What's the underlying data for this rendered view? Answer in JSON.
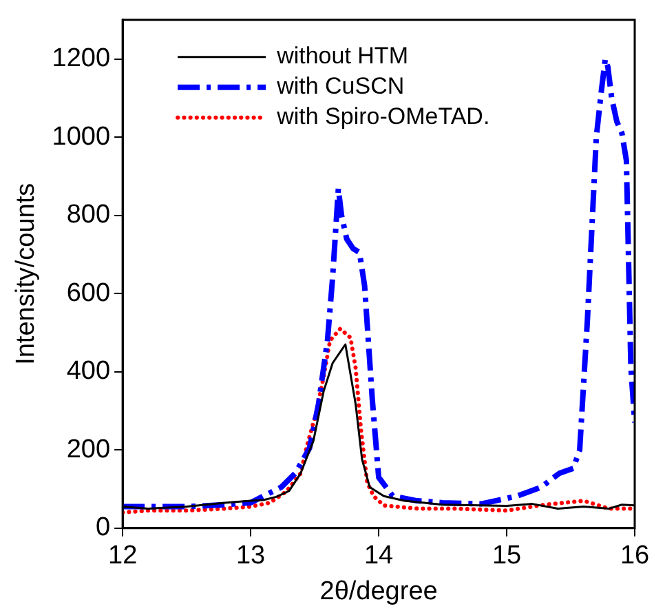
{
  "chart_data": {
    "type": "line",
    "xlabel": "2θ/degree",
    "ylabel": "Intensity/counts",
    "xlim": [
      12,
      16
    ],
    "xticks": [
      12,
      13,
      14,
      15,
      16
    ],
    "ylim": [
      0,
      1300
    ],
    "yticks": [
      0,
      200,
      400,
      600,
      800,
      1000,
      1200
    ],
    "grid": false,
    "legend": "top left",
    "marker": "none",
    "series": [
      {
        "name": "without HTM",
        "color": "#000000",
        "line_style": "solid",
        "x": [
          12.0,
          12.2,
          12.5,
          12.8,
          13.0,
          13.1,
          13.2,
          13.3,
          13.39,
          13.49,
          13.57,
          13.64,
          13.74,
          13.82,
          13.87,
          13.93,
          14.04,
          14.2,
          14.5,
          14.8,
          15.0,
          15.2,
          15.4,
          15.6,
          15.8,
          15.9,
          16.0
        ],
        "values": [
          55,
          50,
          55,
          65,
          70,
          72,
          80,
          95,
          140,
          223,
          350,
          422,
          470,
          317,
          176,
          105,
          82,
          70,
          60,
          58,
          57,
          62,
          50,
          55,
          50,
          60,
          58
        ]
      },
      {
        "name": "with CuSCN",
        "color": "#0000ff",
        "line_style": "dashed",
        "x": [
          12.0,
          12.2,
          12.5,
          12.8,
          13.0,
          13.1,
          13.24,
          13.35,
          13.46,
          13.53,
          13.6,
          13.64,
          13.685,
          13.71,
          13.75,
          13.8,
          13.85,
          13.89,
          13.95,
          14.0,
          14.11,
          14.3,
          14.5,
          14.8,
          15.08,
          15.27,
          15.41,
          15.52,
          15.57,
          15.63,
          15.7,
          15.74,
          15.77,
          15.79,
          15.82,
          15.86,
          15.9,
          15.935,
          15.97,
          16.0
        ],
        "values": [
          55,
          55,
          55,
          60,
          65,
          82,
          105,
          141,
          205,
          317,
          480,
          640,
          868,
          800,
          740,
          715,
          705,
          620,
          330,
          130,
          82,
          70,
          65,
          62,
          82,
          105,
          140,
          153,
          200,
          530,
          1000,
          1120,
          1200,
          1180,
          1100,
          1040,
          1010,
          940,
          410,
          270
        ]
      },
      {
        "name": "with Spiro-OMeTAD.",
        "color": "#ff0000",
        "line_style": "dotted",
        "x": [
          12.0,
          12.2,
          12.5,
          12.8,
          13.0,
          13.15,
          13.28,
          13.39,
          13.44,
          13.51,
          13.57,
          13.62,
          13.7,
          13.78,
          13.82,
          13.86,
          13.91,
          13.96,
          14.04,
          14.3,
          14.6,
          15.0,
          15.3,
          15.6,
          15.8,
          16.0
        ],
        "values": [
          40,
          45,
          45,
          50,
          55,
          65,
          94,
          140,
          211,
          293,
          387,
          480,
          510,
          487,
          410,
          258,
          117,
          82,
          58,
          50,
          50,
          45,
          60,
          70,
          50,
          50
        ]
      }
    ]
  }
}
